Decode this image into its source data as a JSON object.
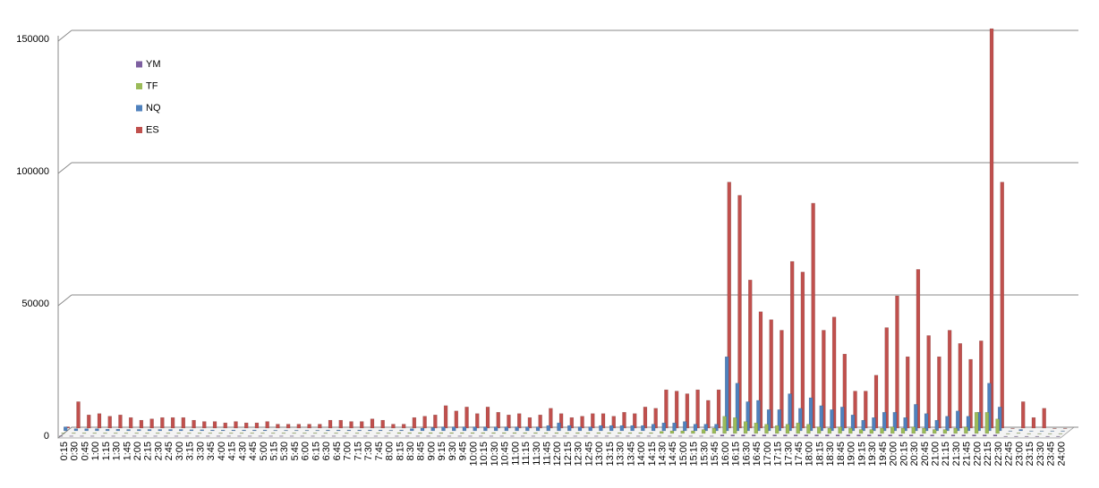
{
  "chart_data": {
    "type": "bar3d",
    "categories": [
      "0:15",
      "0:30",
      "0:45",
      "1:00",
      "1:15",
      "1:30",
      "1:45",
      "2:00",
      "2:15",
      "2:30",
      "2:45",
      "3:00",
      "3:15",
      "3:30",
      "3:45",
      "4:00",
      "4:15",
      "4:30",
      "4:45",
      "5:00",
      "5:15",
      "5:30",
      "5:45",
      "6:00",
      "6:15",
      "6:30",
      "6:45",
      "7:00",
      "7:15",
      "7:30",
      "7:45",
      "8:00",
      "8:15",
      "8:30",
      "8:45",
      "9:00",
      "9:15",
      "9:30",
      "9:45",
      "10:00",
      "10:15",
      "10:30",
      "10:45",
      "11:00",
      "11:15",
      "11:30",
      "11:45",
      "12:00",
      "12:15",
      "12:30",
      "12:45",
      "13:00",
      "13:15",
      "13:30",
      "13:45",
      "14:00",
      "14:15",
      "14:30",
      "14:45",
      "15:00",
      "15:15",
      "15:30",
      "15:45",
      "16:00",
      "16:15",
      "16:30",
      "16:45",
      "17:00",
      "17:15",
      "17:30",
      "17:45",
      "18:00",
      "18:15",
      "18:30",
      "18:45",
      "19:00",
      "19:15",
      "19:30",
      "19:45",
      "20:00",
      "20:15",
      "20:30",
      "20:45",
      "21:00",
      "21:15",
      "21:30",
      "21:45",
      "22:00",
      "22:15",
      "22:30",
      "22:45",
      "23:00",
      "23:15",
      "23:30",
      "23:45",
      "24:00"
    ],
    "series": [
      {
        "name": "YM",
        "color": "#7d5fa0",
        "values": [
          100,
          100,
          100,
          100,
          100,
          100,
          100,
          100,
          100,
          100,
          100,
          100,
          100,
          100,
          100,
          100,
          100,
          100,
          100,
          100,
          100,
          100,
          100,
          100,
          100,
          100,
          100,
          100,
          100,
          100,
          100,
          100,
          100,
          100,
          100,
          100,
          100,
          100,
          100,
          100,
          100,
          100,
          100,
          100,
          100,
          100,
          100,
          100,
          100,
          100,
          100,
          100,
          100,
          100,
          100,
          100,
          100,
          100,
          100,
          100,
          100,
          100,
          100,
          500,
          500,
          500,
          500,
          500,
          500,
          500,
          500,
          500,
          500,
          500,
          500,
          500,
          500,
          500,
          500,
          500,
          500,
          500,
          500,
          500,
          500,
          500,
          500,
          500,
          500,
          500,
          0,
          0,
          0,
          0,
          0,
          0
        ]
      },
      {
        "name": "TF",
        "color": "#9bbb59",
        "values": [
          200,
          200,
          200,
          200,
          200,
          200,
          200,
          200,
          200,
          200,
          200,
          200,
          200,
          200,
          200,
          200,
          200,
          200,
          200,
          200,
          200,
          200,
          200,
          200,
          200,
          200,
          200,
          200,
          200,
          200,
          200,
          200,
          300,
          300,
          300,
          300,
          300,
          300,
          300,
          300,
          300,
          300,
          300,
          300,
          300,
          300,
          300,
          300,
          300,
          300,
          300,
          300,
          300,
          300,
          300,
          300,
          300,
          800,
          1000,
          1000,
          1000,
          1500,
          2000,
          6500,
          6000,
          4500,
          4000,
          3500,
          3000,
          3500,
          4000,
          3500,
          2500,
          2000,
          2500,
          2000,
          1500,
          1500,
          2000,
          2500,
          2000,
          2500,
          2000,
          1500,
          1500,
          2000,
          2500,
          8000,
          8000,
          5500,
          0,
          200,
          0,
          0,
          0,
          0
        ]
      },
      {
        "name": "NQ",
        "color": "#4f81bd",
        "values": [
          1500,
          800,
          800,
          800,
          600,
          600,
          500,
          500,
          500,
          500,
          500,
          500,
          400,
          400,
          300,
          300,
          300,
          300,
          300,
          300,
          200,
          200,
          200,
          200,
          200,
          300,
          300,
          300,
          300,
          300,
          300,
          200,
          300,
          800,
          1000,
          1200,
          1500,
          1500,
          1500,
          1500,
          1500,
          1500,
          1500,
          1500,
          1500,
          1500,
          2000,
          3000,
          2000,
          1500,
          1500,
          2000,
          2000,
          2000,
          2000,
          2000,
          2500,
          3000,
          3000,
          3500,
          2500,
          2500,
          2500,
          28000,
          18000,
          11000,
          11500,
          8000,
          8000,
          14000,
          8500,
          12500,
          9500,
          8000,
          9000,
          6000,
          4000,
          5000,
          7000,
          7000,
          5000,
          10000,
          6500,
          4000,
          5500,
          7500,
          5500,
          7000,
          18000,
          9000,
          0,
          500,
          0,
          0,
          0,
          0
        ]
      },
      {
        "name": "ES",
        "color": "#c0504d",
        "values": [
          500,
          10000,
          5000,
          5500,
          4500,
          5000,
          4000,
          3000,
          3500,
          4000,
          4000,
          4000,
          3000,
          2500,
          2500,
          2000,
          2500,
          2000,
          2000,
          2500,
          1500,
          1500,
          1500,
          1500,
          1500,
          3000,
          3000,
          2500,
          2500,
          3500,
          3000,
          1500,
          1500,
          4000,
          4500,
          5000,
          8500,
          6500,
          8000,
          5500,
          8000,
          6000,
          5000,
          5500,
          4000,
          5000,
          7500,
          5500,
          4000,
          4500,
          5500,
          5500,
          4500,
          6000,
          5500,
          8000,
          7500,
          14500,
          14000,
          13000,
          14500,
          10500,
          14500,
          93000,
          88000,
          56000,
          44000,
          41000,
          37000,
          63000,
          59000,
          85000,
          37000,
          42000,
          28000,
          14000,
          14000,
          20000,
          38000,
          50000,
          27000,
          60000,
          35000,
          27000,
          37000,
          32000,
          26000,
          33000,
          151000,
          93000,
          0,
          10000,
          4000,
          7500,
          0,
          0
        ]
      }
    ],
    "ylim": [
      0,
      150000
    ],
    "yticks": [
      0,
      50000,
      100000,
      150000
    ],
    "grid": true
  }
}
